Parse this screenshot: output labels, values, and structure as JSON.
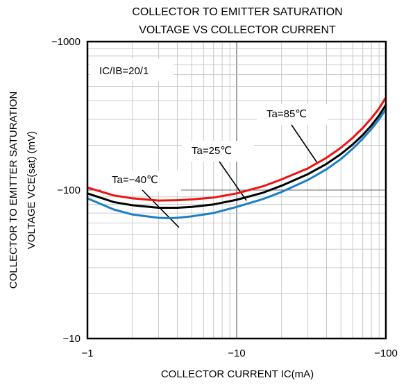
{
  "chart_data": {
    "type": "line",
    "title_lines": [
      "COLLECTOR TO EMITTER SATURATION",
      "VOLTAGE VS COLLECTOR CURRENT"
    ],
    "xlabel": "COLLECTOR CURRENT  IC(mA)",
    "ylabel_lines": [
      "COLLECTOR TO EMITTER SATURATION",
      "VOLTAGE VCE(sat) (mV)"
    ],
    "x_scale": "log",
    "y_scale": "log",
    "xlim": [
      -1,
      -100
    ],
    "ylim": [
      -10,
      -1000
    ],
    "x_ticks": [
      {
        "value": -1,
        "label": "−1"
      },
      {
        "value": -10,
        "label": "−10"
      },
      {
        "value": -100,
        "label": "−100"
      }
    ],
    "y_ticks": [
      {
        "value": -1000,
        "label": "−1000"
      },
      {
        "value": -100,
        "label": "−100"
      },
      {
        "value": -10,
        "label": "−10"
      }
    ],
    "grid": true,
    "annotations": {
      "condition": "IC/IB=20/1"
    },
    "series": [
      {
        "name": "Ta=85℃",
        "color": "#ee1111",
        "points": [
          [
            -1,
            -104
          ],
          [
            -1.5,
            -92
          ],
          [
            -2,
            -88
          ],
          [
            -3,
            -85
          ],
          [
            -4,
            -85.5
          ],
          [
            -5,
            -86.5
          ],
          [
            -7,
            -89
          ],
          [
            -10,
            -95
          ],
          [
            -15,
            -106
          ],
          [
            -20,
            -118
          ],
          [
            -30,
            -140
          ],
          [
            -40,
            -165
          ],
          [
            -50,
            -193
          ],
          [
            -60,
            -225
          ],
          [
            -70,
            -262
          ],
          [
            -80,
            -305
          ],
          [
            -90,
            -355
          ],
          [
            -100,
            -420
          ]
        ]
      },
      {
        "name": "Ta=25℃",
        "color": "#000000",
        "points": [
          [
            -1,
            -95
          ],
          [
            -1.5,
            -83
          ],
          [
            -2,
            -79
          ],
          [
            -3,
            -76
          ],
          [
            -4,
            -76
          ],
          [
            -5,
            -77
          ],
          [
            -7,
            -80
          ],
          [
            -10,
            -86
          ],
          [
            -15,
            -96
          ],
          [
            -20,
            -107
          ],
          [
            -30,
            -128
          ],
          [
            -40,
            -150
          ],
          [
            -50,
            -175
          ],
          [
            -60,
            -203
          ],
          [
            -70,
            -235
          ],
          [
            -80,
            -273
          ],
          [
            -90,
            -318
          ],
          [
            -100,
            -375
          ]
        ]
      },
      {
        "name": "Ta=−40℃",
        "color": "#1a7fc4",
        "points": [
          [
            -1,
            -88
          ],
          [
            -1.5,
            -74
          ],
          [
            -2,
            -68.5
          ],
          [
            -3,
            -65
          ],
          [
            -3.5,
            -64.7
          ],
          [
            -4,
            -65
          ],
          [
            -5,
            -66.5
          ],
          [
            -7,
            -70
          ],
          [
            -10,
            -77
          ],
          [
            -15,
            -87
          ],
          [
            -20,
            -97
          ],
          [
            -30,
            -117
          ],
          [
            -40,
            -138
          ],
          [
            -50,
            -162
          ],
          [
            -60,
            -190
          ],
          [
            -70,
            -222
          ],
          [
            -80,
            -258
          ],
          [
            -90,
            -300
          ],
          [
            -100,
            -350
          ]
        ]
      }
    ],
    "series_labels": [
      {
        "series": 0,
        "text": "Ta=85℃"
      },
      {
        "series": 1,
        "text": "Ta=25℃"
      },
      {
        "series": 2,
        "text": "Ta=−40℃"
      }
    ]
  }
}
